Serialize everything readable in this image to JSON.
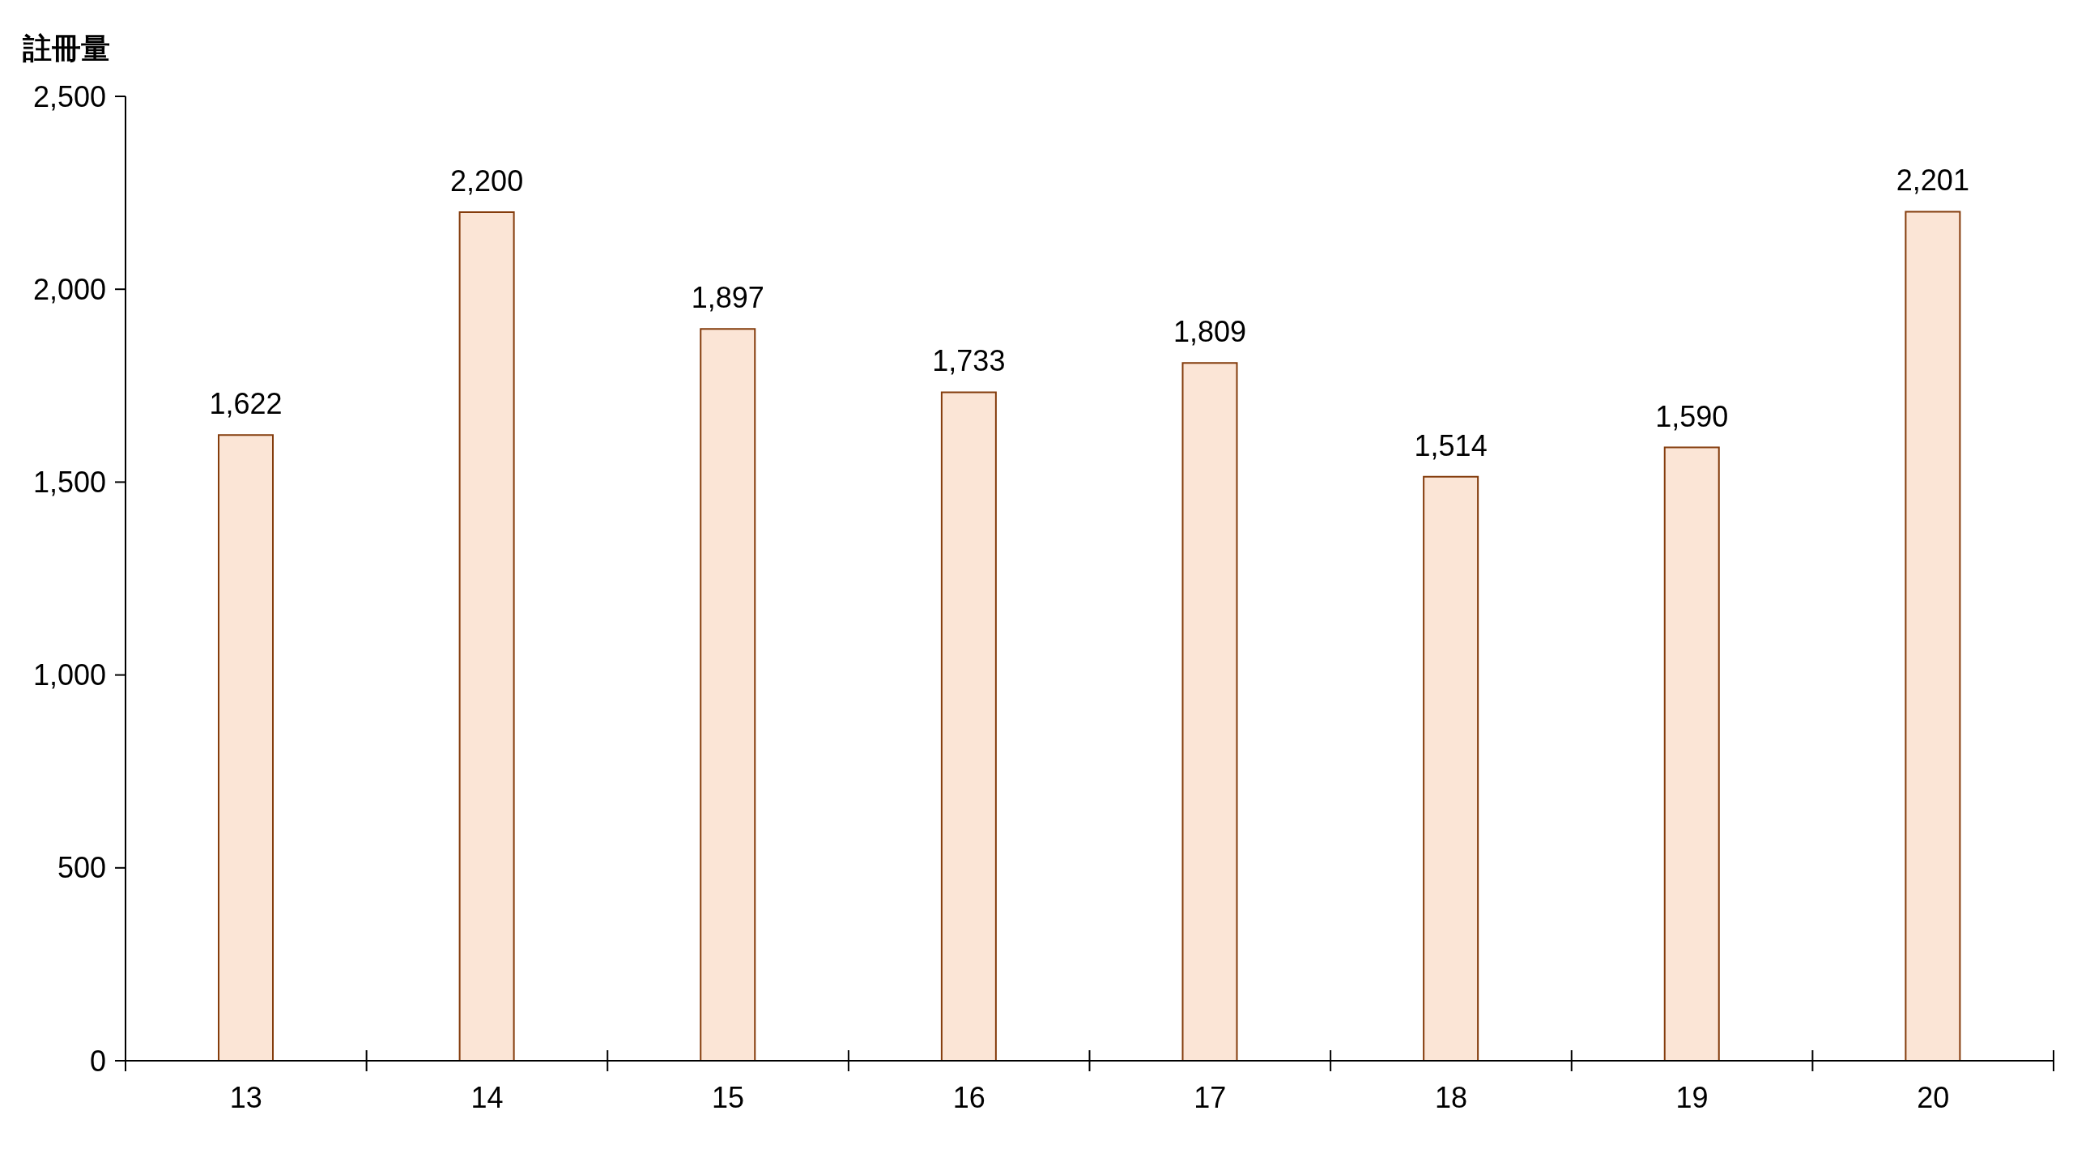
{
  "chart_data": {
    "type": "bar",
    "ylabel": "註冊量",
    "categories": [
      "13",
      "14",
      "15",
      "16",
      "17",
      "18",
      "19",
      "20"
    ],
    "values": [
      1622,
      2200,
      1897,
      1733,
      1809,
      1514,
      1590,
      2201
    ],
    "value_labels": [
      "1,622",
      "2,200",
      "1,897",
      "1,733",
      "1,809",
      "1,514",
      "1,590",
      "2,201"
    ],
    "color": "#fbe5d6",
    "ylim": [
      0,
      2500
    ],
    "yticks": [
      0,
      500,
      {
        "value": 1000,
        "label": "1,000"
      },
      {
        "value": 1500,
        "label": "1,500"
      },
      {
        "value": 2000,
        "label": "2,000"
      },
      {
        "value": 2500,
        "label": "2,500"
      }
    ]
  }
}
